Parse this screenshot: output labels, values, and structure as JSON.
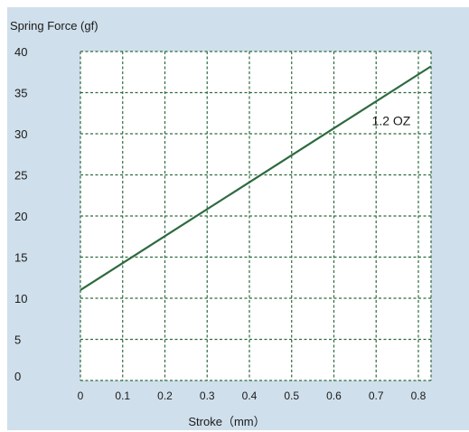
{
  "chart_data": {
    "type": "line",
    "title": "",
    "ylabel": "Spring Force (gf)",
    "xlabel": "Stroke（mm）",
    "xlim": [
      0,
      0.83
    ],
    "ylim": [
      0,
      40
    ],
    "x_ticks": [
      0,
      0.1,
      0.2,
      0.3,
      0.4,
      0.5,
      0.6,
      0.7,
      0.8
    ],
    "x_tick_labels": [
      "0",
      "0.1",
      "0.2",
      "0.3",
      "0.4",
      "0.5",
      "0.6",
      "0.7",
      "0.8"
    ],
    "y_ticks": [
      0,
      5,
      10,
      15,
      20,
      25,
      30,
      35,
      40
    ],
    "y_tick_labels": [
      "0",
      "5",
      "10",
      "15",
      "20",
      "25",
      "30",
      "35",
      "40"
    ],
    "grid": true,
    "series": [
      {
        "name": "1.2 OZ",
        "color": "#2d6a3e",
        "x": [
          0,
          0.83
        ],
        "y": [
          11,
          38.2
        ]
      }
    ],
    "annotations": [
      {
        "text": "1.2 OZ",
        "x": 0.69,
        "y": 31.5
      }
    ]
  }
}
